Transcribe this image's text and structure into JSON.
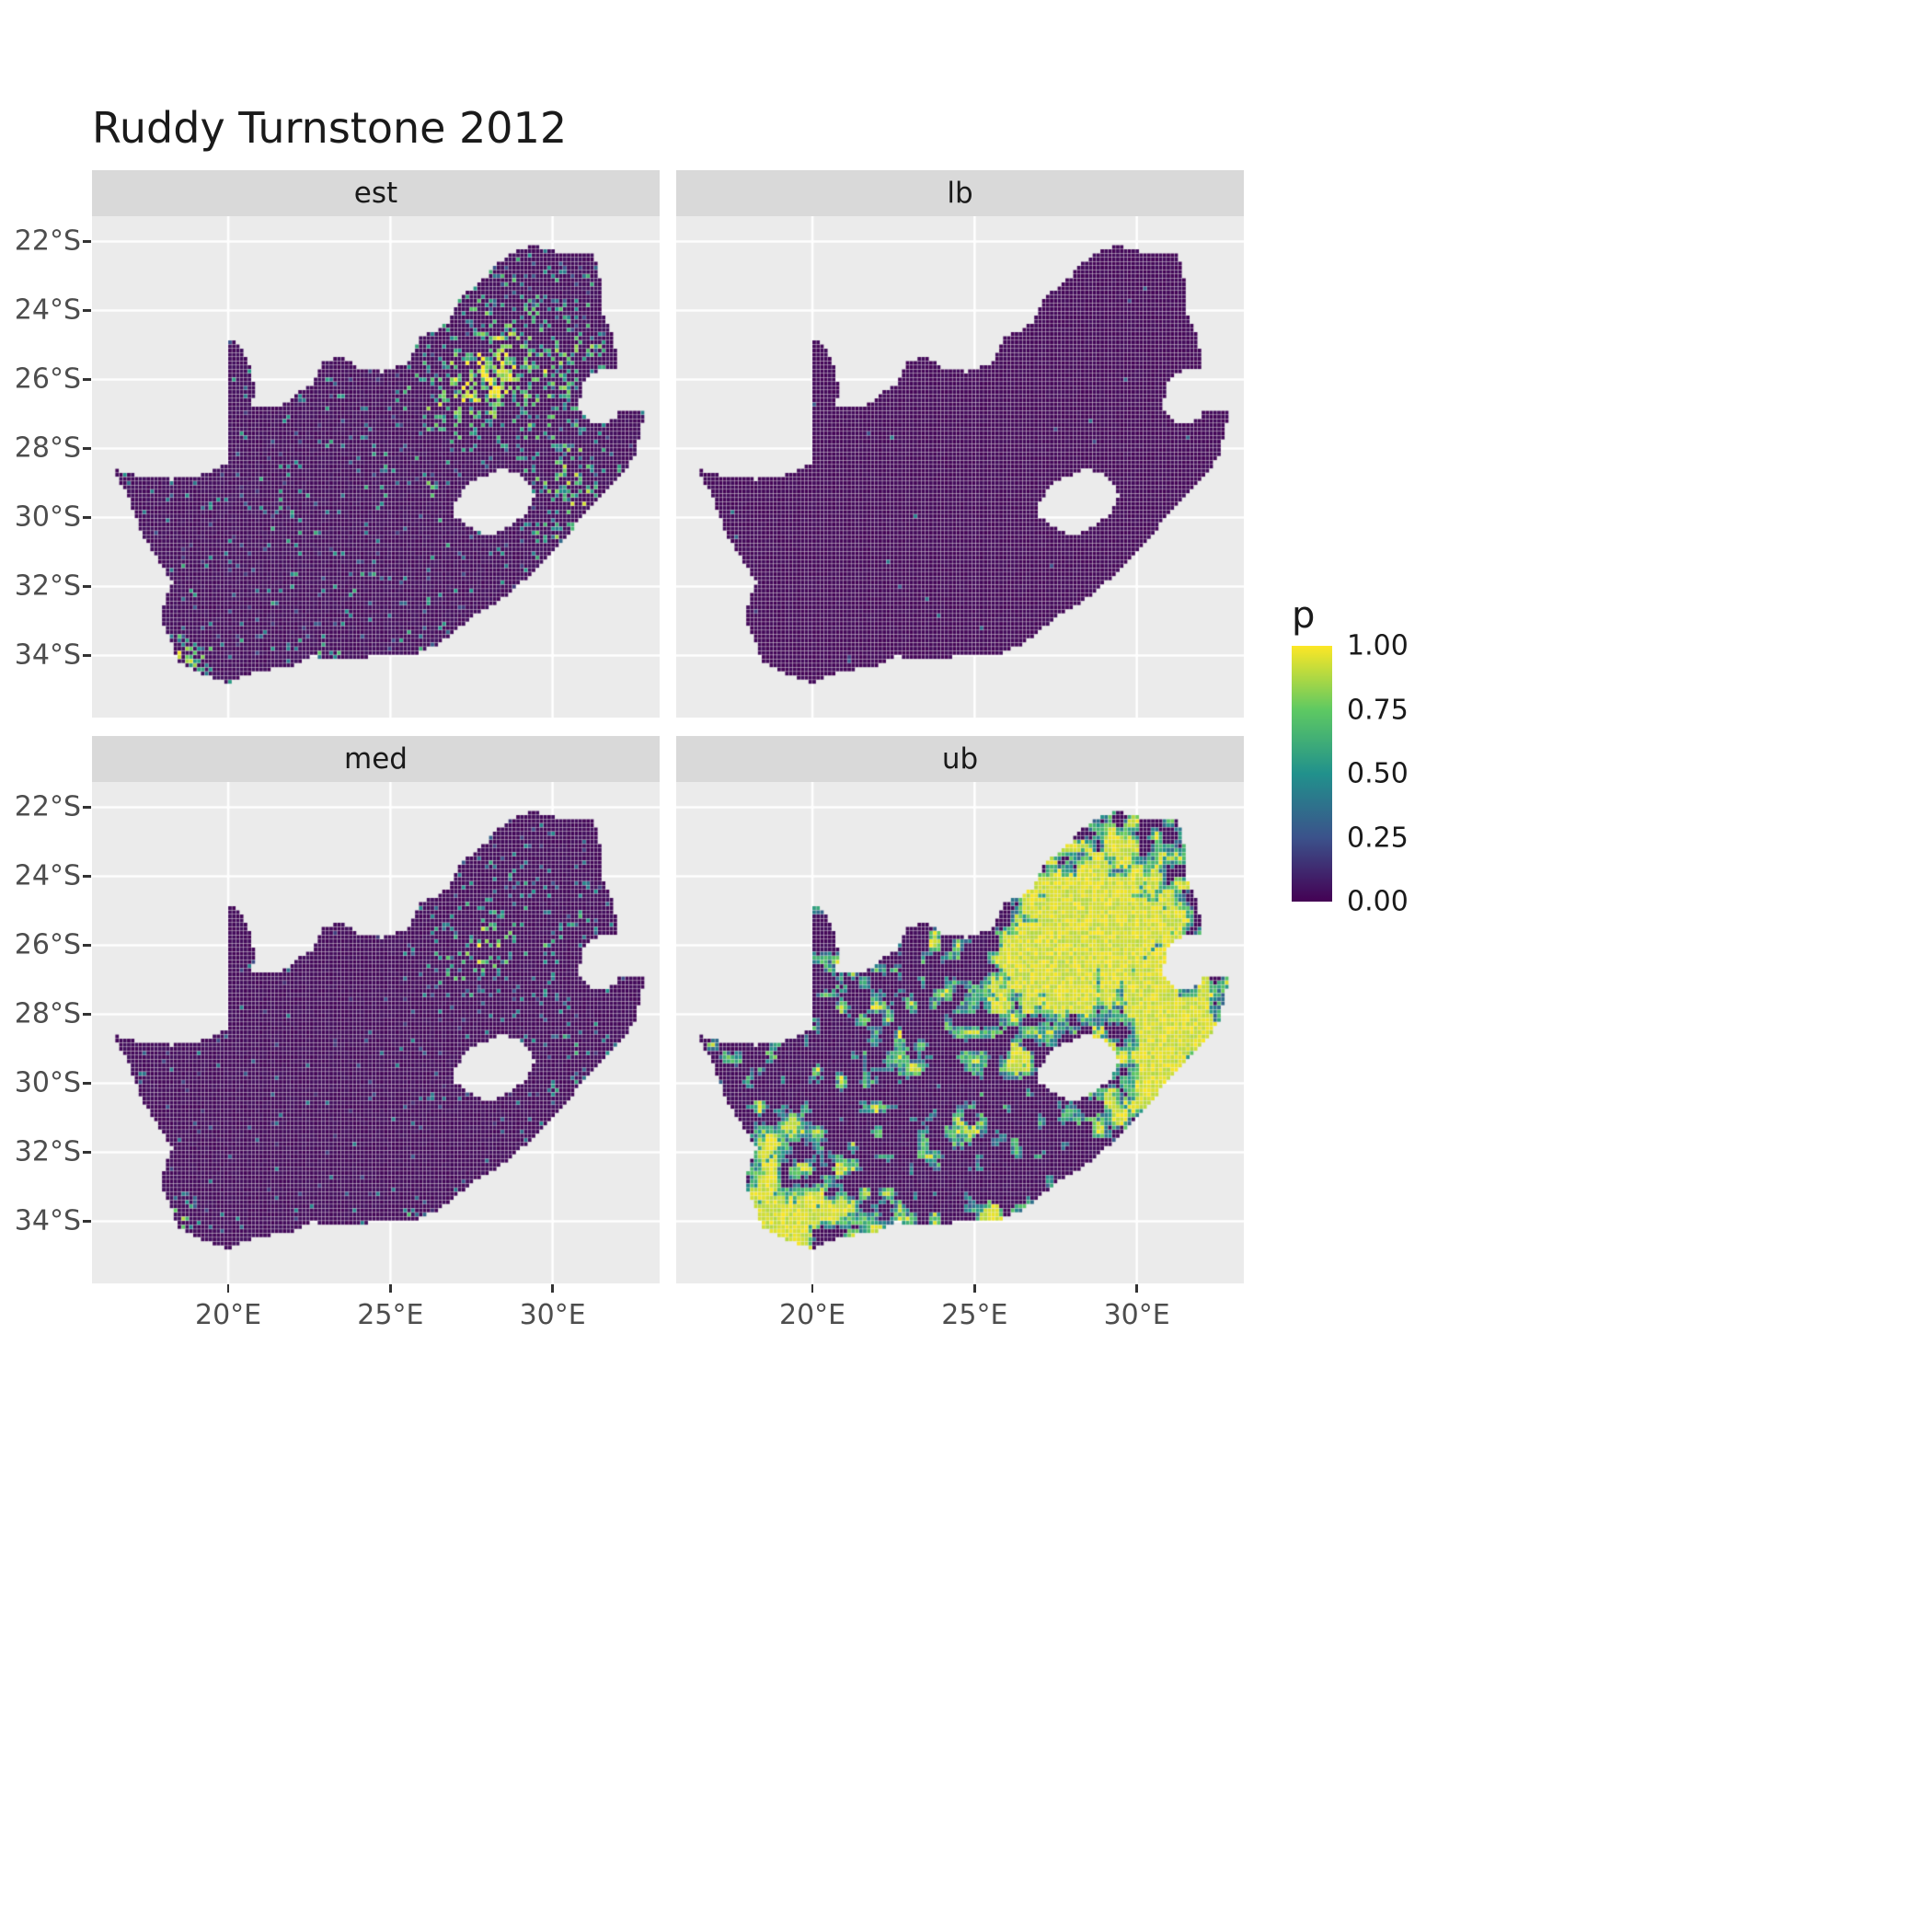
{
  "chart_data": {
    "type": "heatmap",
    "variant": "faceted_raster_map",
    "title": "Ruddy Turnstone 2012",
    "region_name": "South Africa",
    "facets": [
      {
        "label": "est",
        "gen": {
          "mode": "speckle",
          "seed": 11,
          "base": [
            0.01,
            0.04
          ],
          "act_base": 0.055,
          "act_w": 0.5,
          "w_cap": 1.1,
          "val_base": 0.12,
          "val_rand": 0.5,
          "val_w": 0.55,
          "val_w2": 0.25
        }
      },
      {
        "label": "lb",
        "gen": {
          "mode": "flat",
          "seed": 21,
          "base": [
            0.005,
            0.03
          ],
          "spike_thresh": 0.9965,
          "spike_base": 0.15,
          "spike_rand": 0.3
        }
      },
      {
        "label": "med",
        "gen": {
          "mode": "speckle",
          "seed": 31,
          "base": [
            0.01,
            0.035
          ],
          "act_base": 0.025,
          "act_w": 0.22,
          "w_cap": 1.0,
          "val_base": 0.1,
          "val_rand": 0.35,
          "val_w": 0.5,
          "val_w2": 0.15
        }
      },
      {
        "label": "ub",
        "gen": {
          "mode": "patches",
          "seed": 41,
          "base": [
            0.01,
            0.04
          ],
          "noise_scale": 3.0,
          "n_w": 0.62,
          "hot_w": 0.33,
          "t_hi": 0.58,
          "t_mid": 0.5,
          "t_lo": 0.46,
          "boosts": [
            [
              28.6,
              -25.6,
              2.2,
              0.33
            ],
            [
              20.3,
              -34.2,
              1.6,
              0.2
            ],
            [
              18.6,
              -33.2,
              1.1,
              0.18
            ],
            [
              30.8,
              -29.6,
              1.0,
              0.18
            ],
            [
              31.5,
              -28.3,
              1.0,
              0.15
            ]
          ]
        }
      }
    ],
    "x_axis": {
      "tick_labels": [
        "20°E",
        "25°E",
        "30°E"
      ],
      "tick_lons": [
        20,
        25,
        30
      ]
    },
    "y_axis": {
      "tick_labels": [
        "22°S",
        "24°S",
        "26°S",
        "28°S",
        "30°S",
        "32°S",
        "34°S"
      ],
      "tick_lats": [
        -22,
        -24,
        -26,
        -28,
        -30,
        -32,
        -34
      ]
    },
    "lon_range": [
      15.8,
      33.3
    ],
    "lat_range": [
      -35.8,
      -21.27
    ],
    "legend": {
      "title": "p",
      "tick_labels": [
        "1.00",
        "0.75",
        "0.50",
        "0.25",
        "0.00"
      ],
      "tick_values": [
        1,
        0.75,
        0.5,
        0.25,
        0
      ]
    },
    "colormap": {
      "name": "viridis",
      "stops": [
        {
          "t": 0,
          "color": "#440154"
        },
        {
          "t": 0.25,
          "color": "#3B528B"
        },
        {
          "t": 0.5,
          "color": "#21918C"
        },
        {
          "t": 0.75,
          "color": "#5EC962"
        },
        {
          "t": 1,
          "color": "#FDE725"
        }
      ]
    },
    "raster": {
      "cell_deg": 0.12
    },
    "hotspots": [
      [
        28.05,
        -26.1,
        0.5,
        1.0
      ],
      [
        27.1,
        -25.8,
        0.9,
        0.35
      ],
      [
        29.3,
        -25.3,
        0.9,
        0.28
      ],
      [
        30.95,
        -29.85,
        0.35,
        0.5
      ],
      [
        18.55,
        -33.95,
        0.45,
        0.8
      ],
      [
        19.4,
        -34.45,
        0.5,
        0.3
      ],
      [
        25.6,
        -33.9,
        0.3,
        0.45
      ],
      [
        23.0,
        -34.05,
        0.5,
        0.28
      ],
      [
        26.2,
        -29.12,
        0.25,
        0.3
      ],
      [
        30.4,
        -28.9,
        0.6,
        0.3
      ],
      [
        29.8,
        -30.6,
        0.45,
        0.28
      ],
      [
        24.75,
        -28.74,
        0.3,
        0.2
      ],
      [
        28.4,
        -24.6,
        0.7,
        0.25
      ],
      [
        26.9,
        -26.9,
        0.6,
        0.3
      ],
      [
        30.0,
        -26.5,
        0.8,
        0.25
      ],
      [
        31.0,
        -25.3,
        0.6,
        0.25
      ],
      [
        29.0,
        -25.0,
        2.5,
        0.15
      ],
      [
        30.8,
        -28.8,
        1.5,
        0.15
      ]
    ],
    "outline": [
      [
        16.45,
        -28.58
      ],
      [
        17.1,
        -28.78
      ],
      [
        17.75,
        -28.77
      ],
      [
        18.2,
        -28.9
      ],
      [
        18.9,
        -28.85
      ],
      [
        19.45,
        -28.7
      ],
      [
        19.98,
        -28.43
      ],
      [
        19.98,
        -24.77
      ],
      [
        20.35,
        -25.05
      ],
      [
        20.6,
        -25.45
      ],
      [
        20.75,
        -25.9
      ],
      [
        20.82,
        -26.4
      ],
      [
        20.65,
        -26.83
      ],
      [
        21.3,
        -26.85
      ],
      [
        21.8,
        -26.67
      ],
      [
        22.2,
        -26.35
      ],
      [
        22.65,
        -26.1
      ],
      [
        22.88,
        -25.55
      ],
      [
        23.45,
        -25.3
      ],
      [
        24.0,
        -25.65
      ],
      [
        24.75,
        -25.78
      ],
      [
        25.35,
        -25.6
      ],
      [
        25.6,
        -25.48
      ],
      [
        25.9,
        -24.75
      ],
      [
        26.45,
        -24.6
      ],
      [
        26.85,
        -24.28
      ],
      [
        27.15,
        -23.65
      ],
      [
        27.95,
        -23.05
      ],
      [
        28.35,
        -22.6
      ],
      [
        29.05,
        -22.2
      ],
      [
        29.45,
        -22.13
      ],
      [
        30.1,
        -22.3
      ],
      [
        31.1,
        -22.35
      ],
      [
        31.3,
        -22.42
      ],
      [
        31.55,
        -23.5
      ],
      [
        31.55,
        -24.1
      ],
      [
        31.9,
        -24.85
      ],
      [
        32.0,
        -25.35
      ],
      [
        32.02,
        -25.65
      ],
      [
        31.4,
        -25.74
      ],
      [
        30.95,
        -26.1
      ],
      [
        30.8,
        -26.82
      ],
      [
        31.1,
        -27.2
      ],
      [
        31.6,
        -27.3
      ],
      [
        31.97,
        -27.1
      ],
      [
        32.13,
        -26.85
      ],
      [
        32.89,
        -26.86
      ],
      [
        32.55,
        -28.2
      ],
      [
        32.25,
        -28.6
      ],
      [
        31.75,
        -29.2
      ],
      [
        31.05,
        -29.85
      ],
      [
        30.25,
        -30.75
      ],
      [
        29.45,
        -31.55
      ],
      [
        28.55,
        -32.3
      ],
      [
        27.45,
        -32.95
      ],
      [
        26.45,
        -33.7
      ],
      [
        25.65,
        -34.02
      ],
      [
        25.0,
        -33.97
      ],
      [
        24.2,
        -34.07
      ],
      [
        23.4,
        -34.1
      ],
      [
        22.55,
        -34.03
      ],
      [
        21.8,
        -34.4
      ],
      [
        20.95,
        -34.42
      ],
      [
        20.0,
        -34.82
      ],
      [
        19.35,
        -34.6
      ],
      [
        18.85,
        -34.4
      ],
      [
        18.45,
        -34.2
      ],
      [
        18.35,
        -33.9
      ],
      [
        17.88,
        -32.8
      ],
      [
        18.3,
        -31.9
      ],
      [
        17.35,
        -30.5
      ],
      [
        16.95,
        -29.45
      ]
    ],
    "holes": [
      [
        [
          27.0,
          -29.6
        ],
        [
          27.35,
          -29.05
        ],
        [
          27.8,
          -28.85
        ],
        [
          28.4,
          -28.6
        ],
        [
          28.95,
          -28.75
        ],
        [
          29.35,
          -29.05
        ],
        [
          29.45,
          -29.4
        ],
        [
          29.15,
          -29.95
        ],
        [
          28.6,
          -30.3
        ],
        [
          28.0,
          -30.55
        ],
        [
          27.45,
          -30.3
        ],
        [
          27.0,
          -29.98
        ]
      ]
    ]
  },
  "theme": {
    "figure_bg": "#FFFFFF",
    "panel_bg": "#EBEBEB",
    "strip_bg": "#D9D9D9",
    "strip_text": "#1A1A1A",
    "grid_color": "#FFFFFF",
    "tick_text_color": "#4D4D4D",
    "axis_tick_color": "#333333",
    "title_color": "#1A1A1A"
  }
}
